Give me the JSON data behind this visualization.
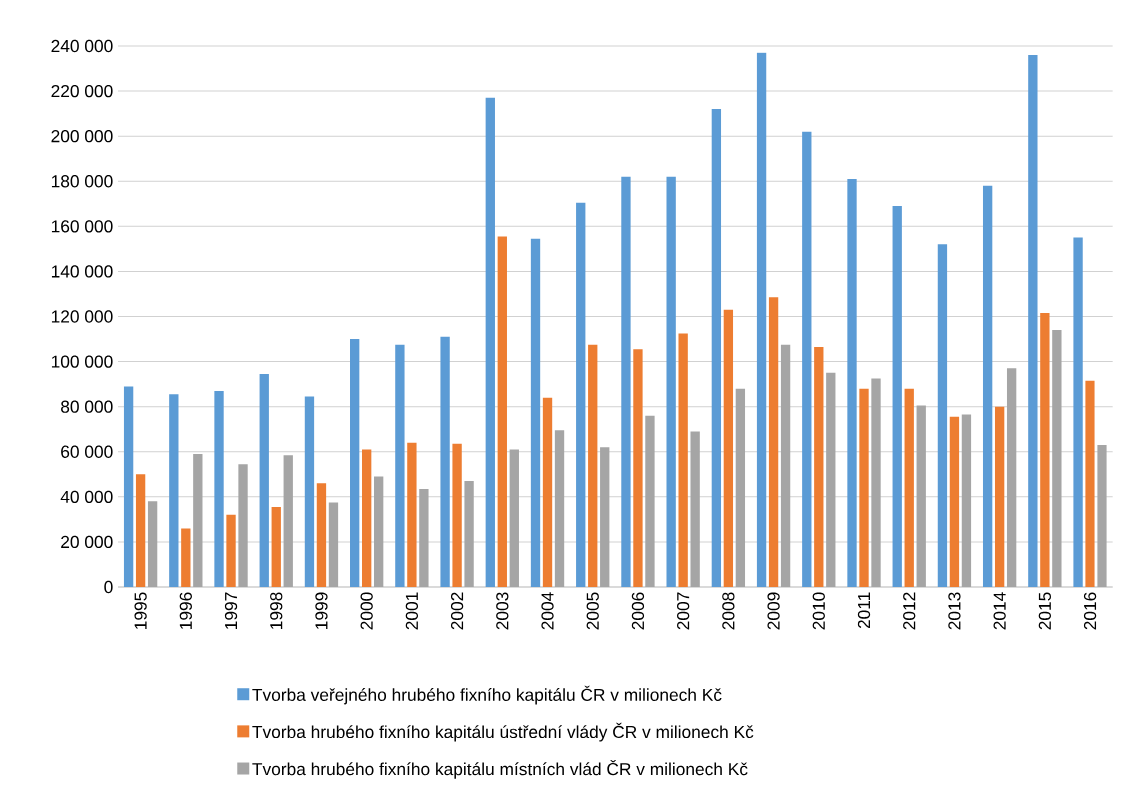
{
  "chart_data": {
    "type": "bar",
    "categories": [
      "1995",
      "1996",
      "1997",
      "1998",
      "1999",
      "2000",
      "2001",
      "2002",
      "2003",
      "2004",
      "2005",
      "2006",
      "2007",
      "2008",
      "2009",
      "2010",
      "2011",
      "2012",
      "2013",
      "2014",
      "2015",
      "2016"
    ],
    "series": [
      {
        "name": "Tvorba veřejného hrubého fixního kapitálu ČR v milionech Kč",
        "color": "#5b9bd5",
        "values": [
          89000,
          85500,
          87000,
          94500,
          84500,
          110000,
          107500,
          111000,
          217000,
          154500,
          170500,
          182000,
          182000,
          212000,
          237000,
          202000,
          181000,
          169000,
          152000,
          178000,
          236000,
          155000
        ]
      },
      {
        "name": "Tvorba hrubého fixního kapitálu ústřední vlády ČR v milionech Kč",
        "color": "#ed7d31",
        "values": [
          50000,
          26000,
          32000,
          35500,
          46000,
          61000,
          64000,
          63500,
          155500,
          84000,
          107500,
          105500,
          112500,
          123000,
          128500,
          106500,
          88000,
          88000,
          75500,
          80000,
          121500,
          91500
        ]
      },
      {
        "name": "Tvorba hrubého fixního kapitálu místních vlád ČR v milionech Kč",
        "color": "#a5a5a5",
        "values": [
          38000,
          59000,
          54500,
          58500,
          37500,
          49000,
          43500,
          47000,
          61000,
          69500,
          62000,
          76000,
          69000,
          88000,
          107500,
          95000,
          92500,
          80500,
          76500,
          97000,
          114000,
          63000
        ]
      }
    ],
    "ylim": [
      0,
      240000
    ],
    "yticks": [
      0,
      {
        "value": 20000,
        "label": "20 000"
      },
      {
        "value": 40000,
        "label": "40 000"
      },
      {
        "value": 60000,
        "label": "60 000"
      },
      {
        "value": 80000,
        "label": "80 000"
      },
      {
        "value": 100000,
        "label": "100 000"
      },
      {
        "value": 120000,
        "label": "120 000"
      },
      {
        "value": 140000,
        "label": "140 000"
      },
      {
        "value": 160000,
        "label": "160 000"
      },
      {
        "value": 180000,
        "label": "180 000"
      },
      {
        "value": 200000,
        "label": "200 000"
      },
      {
        "value": 220000,
        "label": "220 000"
      },
      {
        "value": 240000,
        "label": "240 000"
      }
    ],
    "grid": "y",
    "legend": "bottom"
  }
}
